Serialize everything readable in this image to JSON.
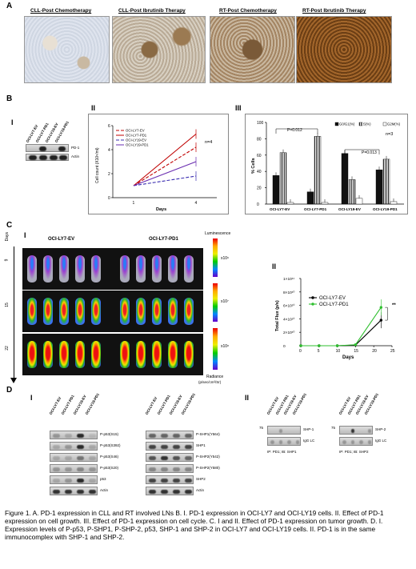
{
  "panel_a": {
    "letter": "A",
    "titles": [
      "CLL-Post Chemotherapy",
      "CLL-Post Ibrutinib Therapy",
      "RT-Post Chemotherapy",
      "RT-Post Ibrutinib Therapy"
    ]
  },
  "panel_b": {
    "letter": "B",
    "sub_i": "I",
    "sub_ii": "II",
    "sub_iii": "III",
    "blot_lanes": [
      "OCI-LY7-EV",
      "OCI-LY7-PD1",
      "OCI-LY19-EV",
      "OCI-LY19-PD1"
    ],
    "blot_rows": [
      "PD-1",
      "Actin"
    ],
    "growth": {
      "ylabel": "Cell count (X10⁶/ml)",
      "xlabel": "Days",
      "note": "n=4",
      "legend": [
        "OCI-LY7-EV",
        "OCI-LY7-PD1",
        "OCI-LY19-EV",
        "OCI-LY19-PD1"
      ],
      "xticks": [
        "1",
        "4"
      ],
      "yticks": [
        "0",
        "2",
        "4",
        "6"
      ]
    },
    "cycle": {
      "ylabel": "% Cells",
      "legend": [
        "G0/G1(%)",
        "S(%)",
        "G2M(%)"
      ],
      "note": "n=3",
      "pval1": "P=0.012",
      "pval2": "P=0.013",
      "yticks": [
        "0",
        "20",
        "40",
        "60",
        "80",
        "100"
      ]
    }
  },
  "panel_c": {
    "letter": "C",
    "sub_i": "I",
    "sub_ii": "II",
    "days_label": "Days",
    "group1": "OCI-LY7-EV",
    "group2": "OCI-LY7-PD1",
    "days": [
      "9",
      "15",
      "22"
    ],
    "scale_title": "Luminescence",
    "scale_units": [
      "x10⁶",
      "x10⁷",
      "x10⁸"
    ],
    "radiance": "Radiance",
    "radiance_units": "(p/sec/cm²/Sr)",
    "flux_ylabel": "Total Flux (p/s)",
    "flux_xlabel": "Days",
    "flux_yticks": [
      "0",
      "2×10¹⁰",
      "4×10¹⁰",
      "6×10¹⁰",
      "8×10¹⁰",
      "1×10¹¹"
    ],
    "flux_xticks": [
      "0",
      "5",
      "10",
      "15",
      "20",
      "25"
    ],
    "sig": "**",
    "flux_legend": [
      "OCI-LY7-EV",
      "OCI-LY7-PD1"
    ]
  },
  "panel_d": {
    "letter": "D",
    "sub_i": "I",
    "sub_ii": "II",
    "lanes": [
      "OCI-LY7-EV",
      "OCI-LY7-PD1",
      "OCI-LY19-EV",
      "OCI-LY19-PD1"
    ],
    "left_rows": [
      "P-p53(S15)",
      "P-p53(S392)",
      "P-p53(S46)",
      "P-p53(S20)",
      "p53",
      "Actin"
    ],
    "right_rows": [
      "P-SHP1(Y564)",
      "SHP1",
      "P-SHP2(Y542)",
      "P-SHP2(Y580)",
      "SHP2",
      "Actin"
    ],
    "ip1_rows": [
      "SHP-1",
      "IgG LC"
    ],
    "ip2_rows": [
      "SHP-2",
      "IgG LC"
    ],
    "mw": "75",
    "ip1_caption": "IP: PD1; IB: SHP1",
    "ip2_caption": "IP: PD1; IB: SHP2"
  },
  "caption": {
    "text": "Figure 1. A. PD-1 expression in CLL and RT involved LNs B. I. PD-1 expression in OCI-LY7 and OCI-LY19 cells. II. Effect of PD-1 expression on cell growth. III. Effect of PD-1 expression on cell cycle. C. I and II. Effect of PD-1 expression on tumor growth. D. I. Expression levels of P-p53, P-SHP1, P-SHP-2, p53, SHP-1 and SHP-2 in OCI-LY7 and OCI-LY19 cells. II. PD-1 is in the same immunocomplex with SHP-1 and SHP-2."
  },
  "chart_data": [
    {
      "type": "line",
      "x": [
        1,
        4
      ],
      "xlabel": "Days",
      "ylabel": "Cell count (X10⁶/ml)",
      "ylim": [
        0,
        6
      ],
      "series": [
        {
          "name": "OCI-LY7-EV",
          "values": [
            1,
            4.2
          ],
          "color": "#c00000"
        },
        {
          "name": "OCI-LY7-PD1",
          "values": [
            1,
            5.3
          ],
          "color": "#c00000"
        },
        {
          "name": "OCI-LY19-EV",
          "values": [
            1,
            1.8
          ],
          "color": "#3a2db0"
        },
        {
          "name": "OCI-LY19-PD1",
          "values": [
            1,
            3.0
          ],
          "color": "#6a2db0"
        }
      ]
    },
    {
      "type": "bar",
      "ylabel": "% Cells",
      "categories": [
        "OCI-LY7-EV",
        "OCI-LY7-PD1",
        "OCI-LY19-EV",
        "OCI-LY19-PD1"
      ],
      "ylim": [
        0,
        100
      ],
      "series": [
        {
          "name": "G0/G1(%)",
          "values": [
            35,
            15,
            62,
            42
          ]
        },
        {
          "name": "S(%)",
          "values": [
            63,
            83,
            30,
            55
          ]
        },
        {
          "name": "G2M(%)",
          "values": [
            2,
            2,
            7,
            3
          ]
        }
      ]
    },
    {
      "type": "line",
      "x": [
        0,
        5,
        10,
        15,
        22
      ],
      "xlabel": "Days",
      "ylabel": "Total Flux (p/s)",
      "ylim": [
        0,
        100000000000
      ],
      "series": [
        {
          "name": "OCI-LY7-EV",
          "values": [
            0,
            0,
            0,
            1000000000,
            38000000000
          ],
          "color": "#000000"
        },
        {
          "name": "OCI-LY7-PD1",
          "values": [
            0,
            0,
            0,
            1500000000,
            57000000000
          ],
          "color": "#2fbf2f"
        }
      ]
    }
  ]
}
